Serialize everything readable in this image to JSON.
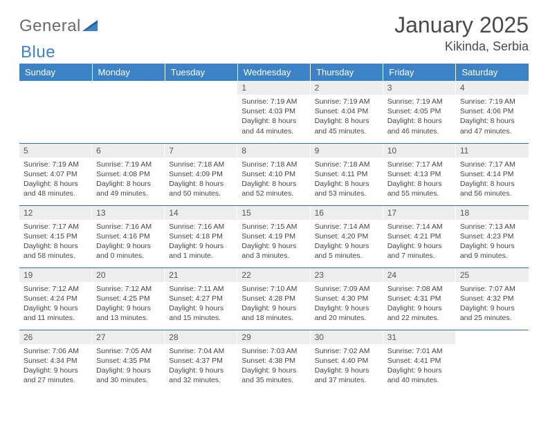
{
  "logo": {
    "text1": "General",
    "text2": "Blue"
  },
  "header": {
    "month_title": "January 2025",
    "location": "Kikinda, Serbia"
  },
  "colors": {
    "header_bg": "#3b82c7",
    "header_text": "#ffffff",
    "daynum_bg": "#ededed",
    "row_border": "#2f6fa6",
    "logo_gray": "#6b6b6b",
    "logo_blue": "#3b82c7"
  },
  "day_headers": [
    "Sunday",
    "Monday",
    "Tuesday",
    "Wednesday",
    "Thursday",
    "Friday",
    "Saturday"
  ],
  "weeks": [
    [
      null,
      null,
      null,
      {
        "n": "1",
        "sunrise": "7:19 AM",
        "sunset": "4:03 PM",
        "daylight": "8 hours and 44 minutes."
      },
      {
        "n": "2",
        "sunrise": "7:19 AM",
        "sunset": "4:04 PM",
        "daylight": "8 hours and 45 minutes."
      },
      {
        "n": "3",
        "sunrise": "7:19 AM",
        "sunset": "4:05 PM",
        "daylight": "8 hours and 46 minutes."
      },
      {
        "n": "4",
        "sunrise": "7:19 AM",
        "sunset": "4:06 PM",
        "daylight": "8 hours and 47 minutes."
      }
    ],
    [
      {
        "n": "5",
        "sunrise": "7:19 AM",
        "sunset": "4:07 PM",
        "daylight": "8 hours and 48 minutes."
      },
      {
        "n": "6",
        "sunrise": "7:19 AM",
        "sunset": "4:08 PM",
        "daylight": "8 hours and 49 minutes."
      },
      {
        "n": "7",
        "sunrise": "7:18 AM",
        "sunset": "4:09 PM",
        "daylight": "8 hours and 50 minutes."
      },
      {
        "n": "8",
        "sunrise": "7:18 AM",
        "sunset": "4:10 PM",
        "daylight": "8 hours and 52 minutes."
      },
      {
        "n": "9",
        "sunrise": "7:18 AM",
        "sunset": "4:11 PM",
        "daylight": "8 hours and 53 minutes."
      },
      {
        "n": "10",
        "sunrise": "7:17 AM",
        "sunset": "4:13 PM",
        "daylight": "8 hours and 55 minutes."
      },
      {
        "n": "11",
        "sunrise": "7:17 AM",
        "sunset": "4:14 PM",
        "daylight": "8 hours and 56 minutes."
      }
    ],
    [
      {
        "n": "12",
        "sunrise": "7:17 AM",
        "sunset": "4:15 PM",
        "daylight": "8 hours and 58 minutes."
      },
      {
        "n": "13",
        "sunrise": "7:16 AM",
        "sunset": "4:16 PM",
        "daylight": "9 hours and 0 minutes."
      },
      {
        "n": "14",
        "sunrise": "7:16 AM",
        "sunset": "4:18 PM",
        "daylight": "9 hours and 1 minute."
      },
      {
        "n": "15",
        "sunrise": "7:15 AM",
        "sunset": "4:19 PM",
        "daylight": "9 hours and 3 minutes."
      },
      {
        "n": "16",
        "sunrise": "7:14 AM",
        "sunset": "4:20 PM",
        "daylight": "9 hours and 5 minutes."
      },
      {
        "n": "17",
        "sunrise": "7:14 AM",
        "sunset": "4:21 PM",
        "daylight": "9 hours and 7 minutes."
      },
      {
        "n": "18",
        "sunrise": "7:13 AM",
        "sunset": "4:23 PM",
        "daylight": "9 hours and 9 minutes."
      }
    ],
    [
      {
        "n": "19",
        "sunrise": "7:12 AM",
        "sunset": "4:24 PM",
        "daylight": "9 hours and 11 minutes."
      },
      {
        "n": "20",
        "sunrise": "7:12 AM",
        "sunset": "4:25 PM",
        "daylight": "9 hours and 13 minutes."
      },
      {
        "n": "21",
        "sunrise": "7:11 AM",
        "sunset": "4:27 PM",
        "daylight": "9 hours and 15 minutes."
      },
      {
        "n": "22",
        "sunrise": "7:10 AM",
        "sunset": "4:28 PM",
        "daylight": "9 hours and 18 minutes."
      },
      {
        "n": "23",
        "sunrise": "7:09 AM",
        "sunset": "4:30 PM",
        "daylight": "9 hours and 20 minutes."
      },
      {
        "n": "24",
        "sunrise": "7:08 AM",
        "sunset": "4:31 PM",
        "daylight": "9 hours and 22 minutes."
      },
      {
        "n": "25",
        "sunrise": "7:07 AM",
        "sunset": "4:32 PM",
        "daylight": "9 hours and 25 minutes."
      }
    ],
    [
      {
        "n": "26",
        "sunrise": "7:06 AM",
        "sunset": "4:34 PM",
        "daylight": "9 hours and 27 minutes."
      },
      {
        "n": "27",
        "sunrise": "7:05 AM",
        "sunset": "4:35 PM",
        "daylight": "9 hours and 30 minutes."
      },
      {
        "n": "28",
        "sunrise": "7:04 AM",
        "sunset": "4:37 PM",
        "daylight": "9 hours and 32 minutes."
      },
      {
        "n": "29",
        "sunrise": "7:03 AM",
        "sunset": "4:38 PM",
        "daylight": "9 hours and 35 minutes."
      },
      {
        "n": "30",
        "sunrise": "7:02 AM",
        "sunset": "4:40 PM",
        "daylight": "9 hours and 37 minutes."
      },
      {
        "n": "31",
        "sunrise": "7:01 AM",
        "sunset": "4:41 PM",
        "daylight": "9 hours and 40 minutes."
      },
      null
    ]
  ],
  "labels": {
    "sunrise": "Sunrise:",
    "sunset": "Sunset:",
    "daylight": "Daylight:"
  }
}
